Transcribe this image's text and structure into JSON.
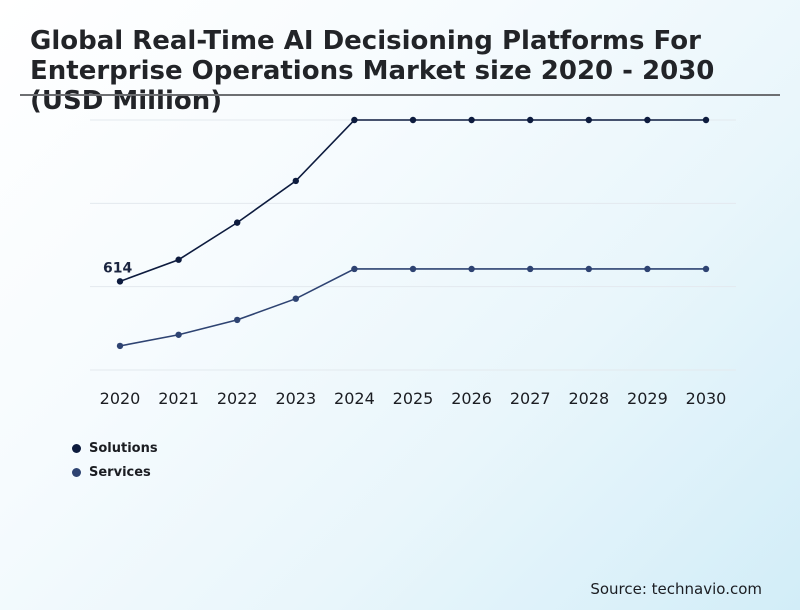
{
  "chart_data": {
    "type": "line",
    "title": "Global Real-Time AI Decisioning Platforms For Enterprise Operations Market size 2020 - 2030 (USD Million)",
    "x": [
      "2020",
      "2021",
      "2022",
      "2023",
      "2024",
      "2025",
      "2026",
      "2027",
      "2028",
      "2029",
      "2030"
    ],
    "series": [
      {
        "name": "Solutions",
        "color": "#0d1b3e",
        "values": [
          614,
          764,
          1021,
          1310,
          1732,
          1732,
          1732,
          1732,
          1732,
          1732,
          1732
        ]
      },
      {
        "name": "Services",
        "color": "#2e4372",
        "values": [
          167,
          244,
          347,
          494,
          700,
          700,
          700,
          700,
          700,
          700,
          700
        ]
      }
    ],
    "annotations": [
      {
        "series": 0,
        "index": 0,
        "text": "614"
      }
    ],
    "ylim": [
      0,
      1732
    ],
    "grid": true,
    "legend_position": "bottom-left"
  },
  "source": "Source: technavio.com"
}
